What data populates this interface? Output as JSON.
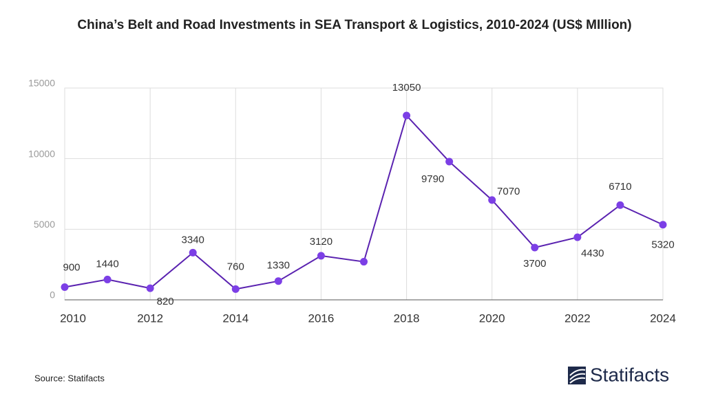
{
  "chart_data": {
    "type": "line",
    "title": "China’s Belt and Road Investments in SEA Transport & Logistics, 2010-2024 (US$ MIllion)",
    "x": [
      2010,
      2011,
      2012,
      2013,
      2014,
      2015,
      2016,
      2017,
      2018,
      2019,
      2020,
      2021,
      2022,
      2023,
      2024
    ],
    "series": [
      {
        "name": "Investment",
        "color": "#5a22b0",
        "marker_color": "#7c3fe6",
        "values": [
          900,
          1440,
          820,
          3340,
          760,
          1330,
          3120,
          2700,
          13050,
          9790,
          7070,
          3700,
          4430,
          6710,
          5320
        ],
        "value_labels": [
          "900",
          "1440",
          "820",
          "3340",
          "760",
          "1330",
          "3120",
          null,
          "13050",
          "9790",
          "7070",
          "3700",
          "4430",
          "6710",
          "5320"
        ]
      }
    ],
    "xlim": [
      2010,
      2024
    ],
    "xticks": [
      2010,
      2012,
      2014,
      2016,
      2018,
      2020,
      2022,
      2024
    ],
    "ylim": [
      0,
      15000
    ],
    "yticks": [
      0,
      5000,
      10000,
      15000
    ],
    "grid": true
  },
  "source": "Source: Statifacts",
  "brand": "Statifacts"
}
